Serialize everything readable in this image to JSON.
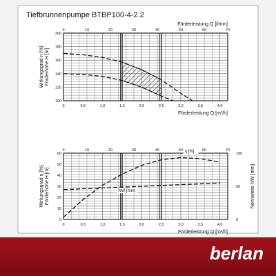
{
  "title": "Tiefbrunnenpumpe BTBP100-4-2.2",
  "brand": "berlan",
  "colors": {
    "banner": "#8e0e17",
    "line": "#222222",
    "grid": "#444444"
  },
  "chart_data": [
    {
      "type": "line",
      "title": "Tiefbrunnenpumpe BTBP100-4-2.2",
      "ylabel": "Förderhöhe H [m]",
      "ylabel2": "Wirkungsgrad η [%]",
      "xlabel": "Förderleistung Q [m³/h]",
      "xlabel_top": "Förderleistung Q [l/min]",
      "xlim": [
        0,
        4.2
      ],
      "ylim": [
        100,
        200
      ],
      "xticks": [
        "0",
        "0,5",
        "1,0",
        "1,5",
        "2,0",
        "2,5",
        "3,0",
        "3,5",
        "4,0"
      ],
      "xticks_top": [
        "0",
        "10",
        "20",
        "30",
        "40",
        "50",
        "60",
        "70"
      ],
      "yticks": [
        "100",
        "120",
        "140",
        "160",
        "180",
        "200"
      ],
      "operating_range": [
        1.5,
        2.5
      ],
      "series": [
        {
          "style": "dashed",
          "x": [
            0,
            0.5,
            1.0,
            1.5,
            2.0,
            2.5,
            3.0,
            3.3
          ],
          "y": [
            170,
            168,
            164,
            157,
            146,
            131,
            111,
            100
          ]
        },
        {
          "style": "dashed",
          "x": [
            0,
            0.5,
            1.0,
            1.5,
            2.0,
            2.5,
            2.8
          ],
          "y": [
            140,
            139,
            136,
            130,
            120,
            107,
            100
          ]
        }
      ]
    },
    {
      "type": "line",
      "ylabel": "Wirkungsgrad η [%]",
      "ylabel_sub": "Förderhöhe H [m]",
      "ylabel2": "Nennweite NW [mm]",
      "xlabel": "Förderleistung Q [m³/h]",
      "xlim": [
        0,
        4.2
      ],
      "ylim": [
        0,
        60
      ],
      "y2lim": [
        0,
        100
      ],
      "xticks": [
        "0",
        "0,5",
        "1,0",
        "1,5",
        "2,0",
        "2,5",
        "3,0",
        "3,5",
        "4,0"
      ],
      "xticks_top": [
        "0",
        "10",
        "20",
        "30",
        "40",
        "50",
        "60",
        "70"
      ],
      "yticks": [
        "0",
        "10",
        "20",
        "30",
        "40",
        "50",
        "60"
      ],
      "y2ticks": [
        "0",
        "50",
        "100"
      ],
      "operating_range": [
        1.5,
        2.5
      ],
      "series": [
        {
          "name": "η [%]",
          "style": "dashed",
          "x": [
            0,
            0.5,
            1.0,
            1.5,
            2.0,
            2.5,
            3.0,
            3.5,
            4.0
          ],
          "y": [
            2,
            18,
            31,
            41,
            49,
            54,
            56,
            55,
            52
          ]
        },
        {
          "name": "NW [mm]",
          "style": "dashed",
          "x": [
            0,
            1.0,
            2.0,
            3.0,
            4.0
          ],
          "y": [
            27,
            28.5,
            30,
            31.5,
            33
          ]
        }
      ]
    }
  ]
}
